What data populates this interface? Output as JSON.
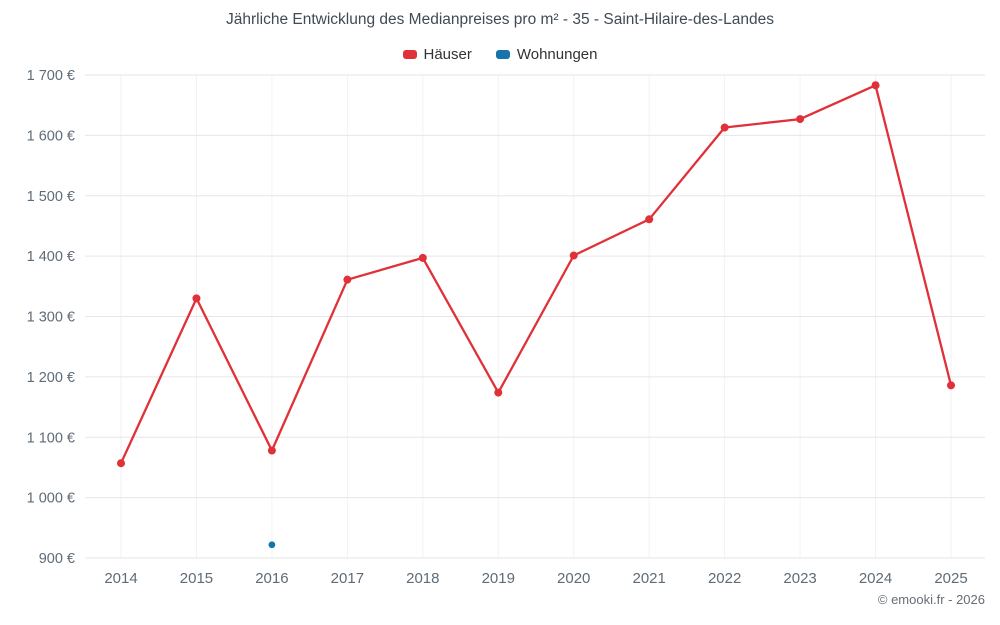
{
  "header": {
    "title": "Jährliche Entwicklung des Medianpreises pro m² - 35 - Saint-Hilaire-des-Landes"
  },
  "footer": {
    "credit": "© emooki.fr - 2026"
  },
  "chart_data": {
    "type": "line",
    "title": "Jährliche Entwicklung des Medianpreises pro m² - 35 - Saint-Hilaire-des-Landes",
    "categories": [
      "2014",
      "2015",
      "2016",
      "2017",
      "2018",
      "2019",
      "2020",
      "2021",
      "2022",
      "2023",
      "2024",
      "2025"
    ],
    "series": [
      {
        "name": "Häuser",
        "color": "#e03038",
        "values": [
          1057,
          1330,
          1078,
          1361,
          1397,
          1174,
          1401,
          1461,
          1613,
          1627,
          1683,
          1186
        ]
      },
      {
        "name": "Wohnungen",
        "color": "#1673ac",
        "values": [
          null,
          null,
          922,
          null,
          null,
          null,
          null,
          null,
          null,
          null,
          null,
          null
        ]
      }
    ],
    "xlabel": "",
    "ylabel": "",
    "ylim": [
      900,
      1700
    ],
    "ytick_step": 100,
    "yticklabels": [
      "900 €",
      "1 000 €",
      "1 100 €",
      "1 200 €",
      "1 300 €",
      "1 400 €",
      "1 500 €",
      "1 600 €",
      "1 700 €"
    ],
    "grid": true,
    "legend_position": "top"
  }
}
